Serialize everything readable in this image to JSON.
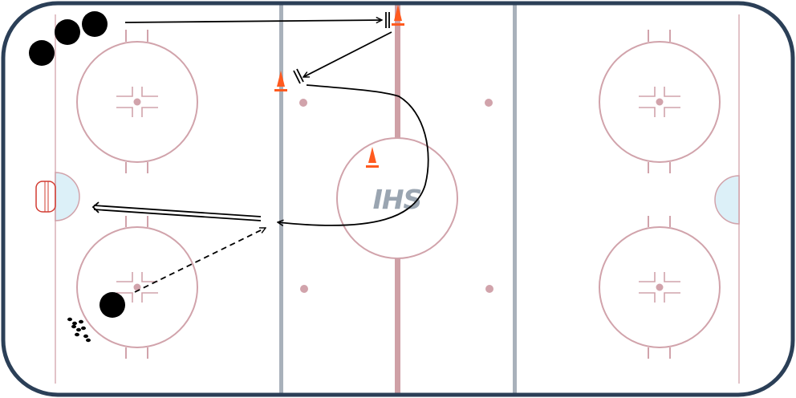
{
  "colors": {
    "boards": "#2b3f57",
    "red_line": "#cfa0a6",
    "blue_line": "#a9b1bb",
    "faceoff": "#d1a3ab",
    "goal_line": "#e2c3c8",
    "crease_fill": "#dcf0f8",
    "net": "#d23c32",
    "cone": "#ff5a1f",
    "player": "#000000",
    "path": "#000000",
    "logo": "#9aa5b1"
  },
  "logo": {
    "text": "IHS"
  },
  "icons": {
    "cone": "traffic-cone-icon",
    "player": "player-marker-icon",
    "puck": "puck-pile-icon",
    "net": "goal-net-icon"
  }
}
